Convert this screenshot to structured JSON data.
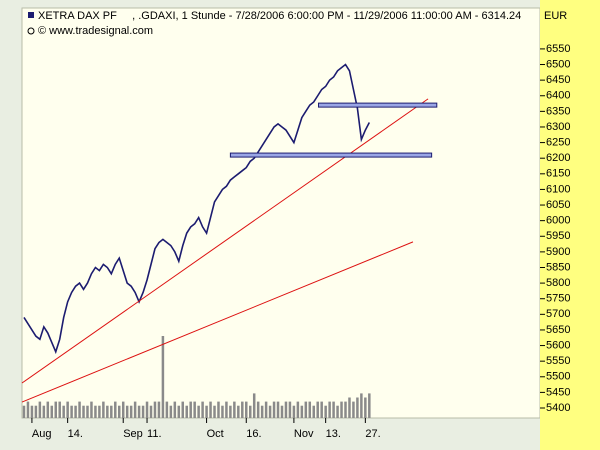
{
  "chart_data": {
    "type": "line",
    "title": "XETRA DAX PF     , .GDAXI, 1 Stunde - 7/28/2006 6:00:00 PM - 11/29/2006 11:00:00 AM - 6314.24",
    "subtitle": "© www.tradesignal.com",
    "y_axis_label": "EUR",
    "x": [
      0,
      1,
      2,
      3,
      4,
      5,
      6,
      7,
      8,
      9,
      10,
      11,
      12,
      13,
      14,
      15,
      16,
      17,
      18,
      19,
      20,
      21,
      22,
      23,
      24,
      25,
      26,
      27,
      28,
      29,
      30,
      31,
      32,
      33,
      34,
      35,
      36,
      37,
      38,
      39,
      40,
      41,
      42,
      43,
      44,
      45,
      46,
      47,
      48,
      49,
      50,
      51,
      52,
      53,
      54,
      55,
      56,
      57,
      58,
      59,
      60,
      61,
      62,
      63,
      64,
      65,
      66,
      67,
      68,
      69,
      70,
      71,
      72,
      73,
      74,
      75,
      76,
      77,
      78,
      79,
      80,
      81,
      82,
      83,
      84,
      85,
      86,
      87
    ],
    "series": [
      {
        "name": "XETRA DAX PF",
        "color": "#1c1c70",
        "values": [
          5690,
          5670,
          5650,
          5630,
          5620,
          5660,
          5640,
          5610,
          5580,
          5620,
          5690,
          5740,
          5770,
          5790,
          5800,
          5780,
          5800,
          5830,
          5850,
          5840,
          5860,
          5850,
          5830,
          5860,
          5880,
          5840,
          5800,
          5790,
          5770,
          5740,
          5770,
          5810,
          5860,
          5910,
          5930,
          5940,
          5930,
          5920,
          5900,
          5870,
          5920,
          5960,
          5980,
          5990,
          6010,
          5980,
          5960,
          6010,
          6060,
          6080,
          6100,
          6110,
          6130,
          6140,
          6150,
          6160,
          6170,
          6190,
          6200,
          6220,
          6240,
          6260,
          6280,
          6300,
          6310,
          6300,
          6290,
          6270,
          6250,
          6290,
          6330,
          6350,
          6370,
          6380,
          6400,
          6420,
          6430,
          6450,
          6460,
          6480,
          6490,
          6500,
          6480,
          6420,
          6360,
          6260,
          6290,
          6314.24
        ]
      },
      {
        "name": "Volume",
        "color": "#8a8a8a",
        "axis": "y2",
        "values": [
          3,
          4,
          3,
          3,
          4,
          3,
          4,
          3,
          4,
          4,
          3,
          4,
          3,
          3,
          4,
          3,
          3,
          4,
          3,
          3,
          4,
          3,
          3,
          4,
          3,
          4,
          3,
          3,
          4,
          3,
          3,
          4,
          3,
          4,
          4,
          20,
          4,
          3,
          4,
          3,
          4,
          3,
          4,
          4,
          3,
          4,
          3,
          4,
          3,
          4,
          3,
          4,
          3,
          4,
          3,
          4,
          4,
          3,
          6,
          4,
          3,
          4,
          3,
          4,
          4,
          3,
          4,
          4,
          3,
          4,
          3,
          4,
          4,
          3,
          4,
          4,
          3,
          4,
          4,
          3,
          4,
          4,
          5,
          4,
          5,
          6,
          5,
          6
        ]
      }
    ],
    "trend_lines": [
      {
        "color": "#dd1111",
        "x": [
          -0.5,
          101.8
        ],
        "y": [
          5480,
          6390
        ]
      },
      {
        "color": "#dd1111",
        "x": [
          -0.5,
          98
        ],
        "y": [
          5419,
          5932
        ]
      }
    ],
    "levels": [
      {
        "color": "#9aa6e6",
        "x": [
          52,
          102.7
        ],
        "y": 6210
      },
      {
        "color": "#9aa6e6",
        "x": [
          74.2,
          104
        ],
        "y": 6370
      }
    ],
    "xlim": [
      -0.5,
      130
    ],
    "xticks": [
      {
        "value": 2,
        "label": "Aug"
      },
      {
        "value": 11,
        "label": "14."
      },
      {
        "value": 25,
        "label": "Sep"
      },
      {
        "value": 31,
        "label": "11."
      },
      {
        "value": 46,
        "label": "Oct"
      },
      {
        "value": 56,
        "label": "16."
      },
      {
        "value": 68,
        "label": "Nov"
      },
      {
        "value": 76,
        "label": "13."
      },
      {
        "value": 86,
        "label": "27."
      }
    ],
    "ylim": [
      5368,
      6681
    ],
    "yticks": [
      5400,
      5450,
      5500,
      5550,
      5600,
      5650,
      5700,
      5750,
      5800,
      5850,
      5900,
      5950,
      6000,
      6050,
      6100,
      6150,
      6200,
      6250,
      6300,
      6350,
      6400,
      6450,
      6500,
      6550
    ],
    "y2lim": [
      0,
      100
    ]
  }
}
